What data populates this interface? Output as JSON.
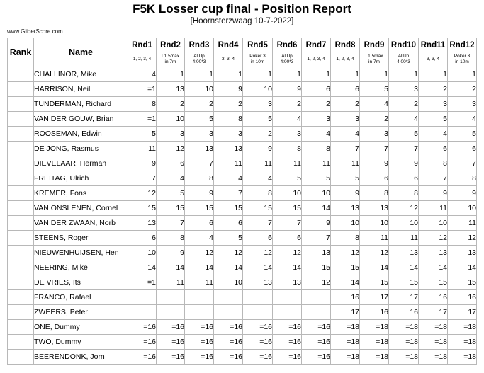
{
  "title": "F5K Losser cup final - Position Report",
  "subtitle": "[Hoornsterzwaag 10-7-2022]",
  "site": "www.GliderScore.com",
  "headers": {
    "rank": "Rank",
    "name": "Name"
  },
  "rounds": [
    {
      "label": "Rnd1",
      "desc": "1, 2, 3, 4"
    },
    {
      "label": "Rnd2",
      "desc": "L1 5max\nin 7m"
    },
    {
      "label": "Rnd3",
      "desc": "AllUp\n4:00*3"
    },
    {
      "label": "Rnd4",
      "desc": "3, 3, 4"
    },
    {
      "label": "Rnd5",
      "desc": "Poker 3\nin 10m"
    },
    {
      "label": "Rnd6",
      "desc": "AllUp\n4:00*3"
    },
    {
      "label": "Rnd7",
      "desc": "1, 2, 3, 4"
    },
    {
      "label": "Rnd8",
      "desc": "1, 2, 3, 4"
    },
    {
      "label": "Rnd9",
      "desc": "L1 5max\nin 7m"
    },
    {
      "label": "Rnd10",
      "desc": "AllUp\n4:00*3"
    },
    {
      "label": "Rnd11",
      "desc": "3, 3, 4"
    },
    {
      "label": "Rnd12",
      "desc": "Poker 3\nin 10m"
    }
  ],
  "pilots": [
    {
      "rank": "",
      "name": "CHALLINOR, Mike",
      "pos": [
        "4",
        "1",
        "1",
        "1",
        "1",
        "1",
        "1",
        "1",
        "1",
        "1",
        "1",
        "1"
      ]
    },
    {
      "rank": "",
      "name": "HARRISON, Neil",
      "pos": [
        "=1",
        "13",
        "10",
        "9",
        "10",
        "9",
        "6",
        "6",
        "5",
        "3",
        "2",
        "2"
      ]
    },
    {
      "rank": "",
      "name": "TUNDERMAN, Richard",
      "pos": [
        "8",
        "2",
        "2",
        "2",
        "3",
        "2",
        "2",
        "2",
        "4",
        "2",
        "3",
        "3"
      ]
    },
    {
      "rank": "",
      "name": "VAN DER GOUW, Brian",
      "pos": [
        "=1",
        "10",
        "5",
        "8",
        "5",
        "4",
        "3",
        "3",
        "2",
        "4",
        "5",
        "4"
      ]
    },
    {
      "rank": "",
      "name": "ROOSEMAN, Edwin",
      "pos": [
        "5",
        "3",
        "3",
        "3",
        "2",
        "3",
        "4",
        "4",
        "3",
        "5",
        "4",
        "5"
      ]
    },
    {
      "rank": "",
      "name": "DE JONG, Rasmus",
      "pos": [
        "11",
        "12",
        "13",
        "13",
        "9",
        "8",
        "8",
        "7",
        "7",
        "7",
        "6",
        "6"
      ]
    },
    {
      "rank": "",
      "name": "DIEVELAAR, Herman",
      "pos": [
        "9",
        "6",
        "7",
        "11",
        "11",
        "11",
        "11",
        "11",
        "9",
        "9",
        "8",
        "7"
      ]
    },
    {
      "rank": "",
      "name": "FREITAG, Ulrich",
      "pos": [
        "7",
        "4",
        "8",
        "4",
        "4",
        "5",
        "5",
        "5",
        "6",
        "6",
        "7",
        "8"
      ]
    },
    {
      "rank": "",
      "name": "KREMER, Fons",
      "pos": [
        "12",
        "5",
        "9",
        "7",
        "8",
        "10",
        "10",
        "9",
        "8",
        "8",
        "9",
        "9"
      ]
    },
    {
      "rank": "",
      "name": "VAN ONSLENEN, Cornel",
      "pos": [
        "15",
        "15",
        "15",
        "15",
        "15",
        "15",
        "14",
        "13",
        "13",
        "12",
        "11",
        "10"
      ]
    },
    {
      "rank": "",
      "name": "VAN DER ZWAAN, Norb",
      "pos": [
        "13",
        "7",
        "6",
        "6",
        "7",
        "7",
        "9",
        "10",
        "10",
        "10",
        "10",
        "11"
      ]
    },
    {
      "rank": "",
      "name": "STEENS, Roger",
      "pos": [
        "6",
        "8",
        "4",
        "5",
        "6",
        "6",
        "7",
        "8",
        "11",
        "11",
        "12",
        "12"
      ]
    },
    {
      "rank": "",
      "name": "NIEUWENHUIJSEN, Hen",
      "pos": [
        "10",
        "9",
        "12",
        "12",
        "12",
        "12",
        "13",
        "12",
        "12",
        "13",
        "13",
        "13"
      ]
    },
    {
      "rank": "",
      "name": "NEERING, Mike",
      "pos": [
        "14",
        "14",
        "14",
        "14",
        "14",
        "14",
        "15",
        "15",
        "14",
        "14",
        "14",
        "14"
      ]
    },
    {
      "rank": "",
      "name": "DE VRIES, Its",
      "pos": [
        "=1",
        "11",
        "11",
        "10",
        "13",
        "13",
        "12",
        "14",
        "15",
        "15",
        "15",
        "15"
      ]
    },
    {
      "rank": "",
      "name": "FRANCO, Rafael",
      "pos": [
        "",
        "",
        "",
        "",
        "",
        "",
        "",
        "16",
        "17",
        "17",
        "16",
        "16"
      ]
    },
    {
      "rank": "",
      "name": "ZWEERS, Peter",
      "pos": [
        "",
        "",
        "",
        "",
        "",
        "",
        "",
        "17",
        "16",
        "16",
        "17",
        "17"
      ]
    },
    {
      "rank": "",
      "name": "ONE, Dummy",
      "pos": [
        "=16",
        "=16",
        "=16",
        "=16",
        "=16",
        "=16",
        "=16",
        "=18",
        "=18",
        "=18",
        "=18",
        "=18"
      ]
    },
    {
      "rank": "",
      "name": "TWO, Dummy",
      "pos": [
        "=16",
        "=16",
        "=16",
        "=16",
        "=16",
        "=16",
        "=16",
        "=18",
        "=18",
        "=18",
        "=18",
        "=18"
      ]
    },
    {
      "rank": "",
      "name": "BEERENDONK, Jorn",
      "pos": [
        "=16",
        "=16",
        "=16",
        "=16",
        "=16",
        "=16",
        "=16",
        "=18",
        "=18",
        "=18",
        "=18",
        "=18"
      ]
    }
  ]
}
